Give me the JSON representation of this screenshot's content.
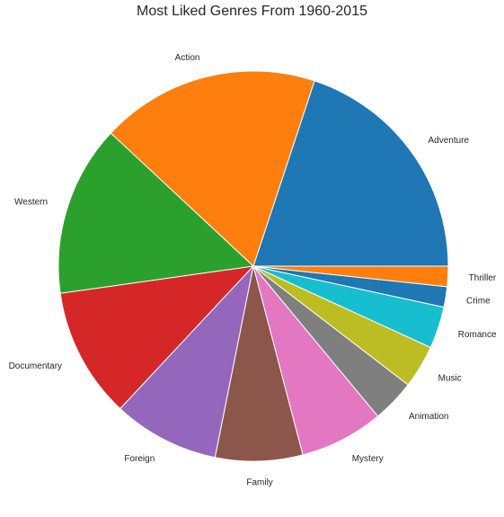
{
  "chart_data": {
    "type": "pie",
    "title": "Most Liked Genres From 1960-2015",
    "slices": [
      {
        "label": "Adventure",
        "value": 20.1,
        "color": "#1f77b4"
      },
      {
        "label": "Action",
        "value": 18.3,
        "color": "#ff7f0e"
      },
      {
        "label": "Western",
        "value": 14.3,
        "color": "#2ca02c"
      },
      {
        "label": "Documentary",
        "value": 10.9,
        "color": "#d62728"
      },
      {
        "label": "Foreign",
        "value": 8.9,
        "color": "#9467bd"
      },
      {
        "label": "Family",
        "value": 7.3,
        "color": "#8c564b"
      },
      {
        "label": "Mystery",
        "value": 7.0,
        "color": "#e377c2"
      },
      {
        "label": "Animation",
        "value": 3.6,
        "color": "#7f7f7f"
      },
      {
        "label": "Music",
        "value": 3.6,
        "color": "#bcbd22"
      },
      {
        "label": "Romance",
        "value": 3.5,
        "color": "#17becf"
      },
      {
        "label": "Crime",
        "value": 1.7,
        "color": "#1f77b4"
      },
      {
        "label": "Thriller",
        "value": 1.7,
        "color": "#ff7f0e"
      }
    ],
    "start_angle_deg": 0,
    "direction": "counterclockwise",
    "legend": "none"
  }
}
